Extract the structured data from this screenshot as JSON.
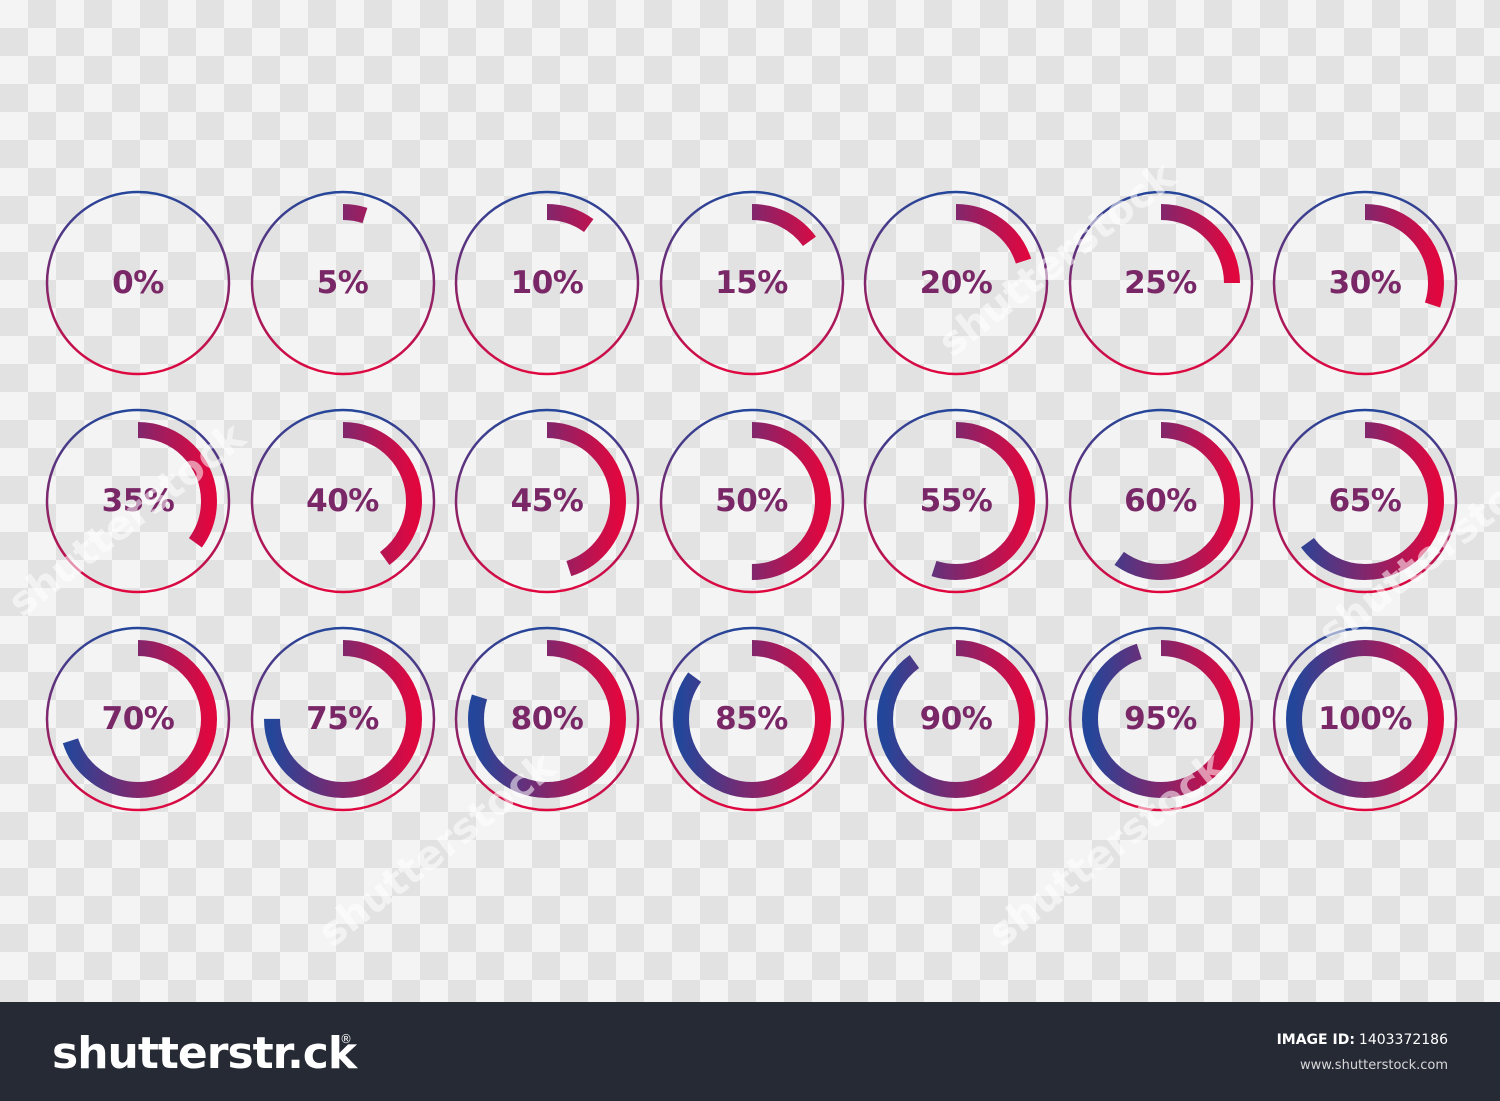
{
  "rings": [
    {
      "label": "0%",
      "value": 0
    },
    {
      "label": "5%",
      "value": 5
    },
    {
      "label": "10%",
      "value": 10
    },
    {
      "label": "15%",
      "value": 15
    },
    {
      "label": "20%",
      "value": 20
    },
    {
      "label": "25%",
      "value": 25
    },
    {
      "label": "30%",
      "value": 30
    },
    {
      "label": "35%",
      "value": 35
    },
    {
      "label": "40%",
      "value": 40
    },
    {
      "label": "45%",
      "value": 45
    },
    {
      "label": "50%",
      "value": 50
    },
    {
      "label": "55%",
      "value": 55
    },
    {
      "label": "60%",
      "value": 60
    },
    {
      "label": "65%",
      "value": 65
    },
    {
      "label": "70%",
      "value": 70
    },
    {
      "label": "75%",
      "value": 75
    },
    {
      "label": "80%",
      "value": 80
    },
    {
      "label": "85%",
      "value": 85
    },
    {
      "label": "90%",
      "value": 90
    },
    {
      "label": "95%",
      "value": 95
    },
    {
      "label": "100%",
      "value": 100
    }
  ],
  "colors": {
    "gradient_top": "#24469a",
    "gradient_bottom": "#e0073f",
    "label": "#7a2767",
    "footer_bg": "#262a35"
  },
  "watermark": {
    "text": "shutterstock"
  },
  "footer": {
    "logo": "shutterstr.ck",
    "registered": "®",
    "image_id_label": "IMAGE ID:",
    "image_id": "1403372186",
    "site": "www.shutterstock.com"
  }
}
